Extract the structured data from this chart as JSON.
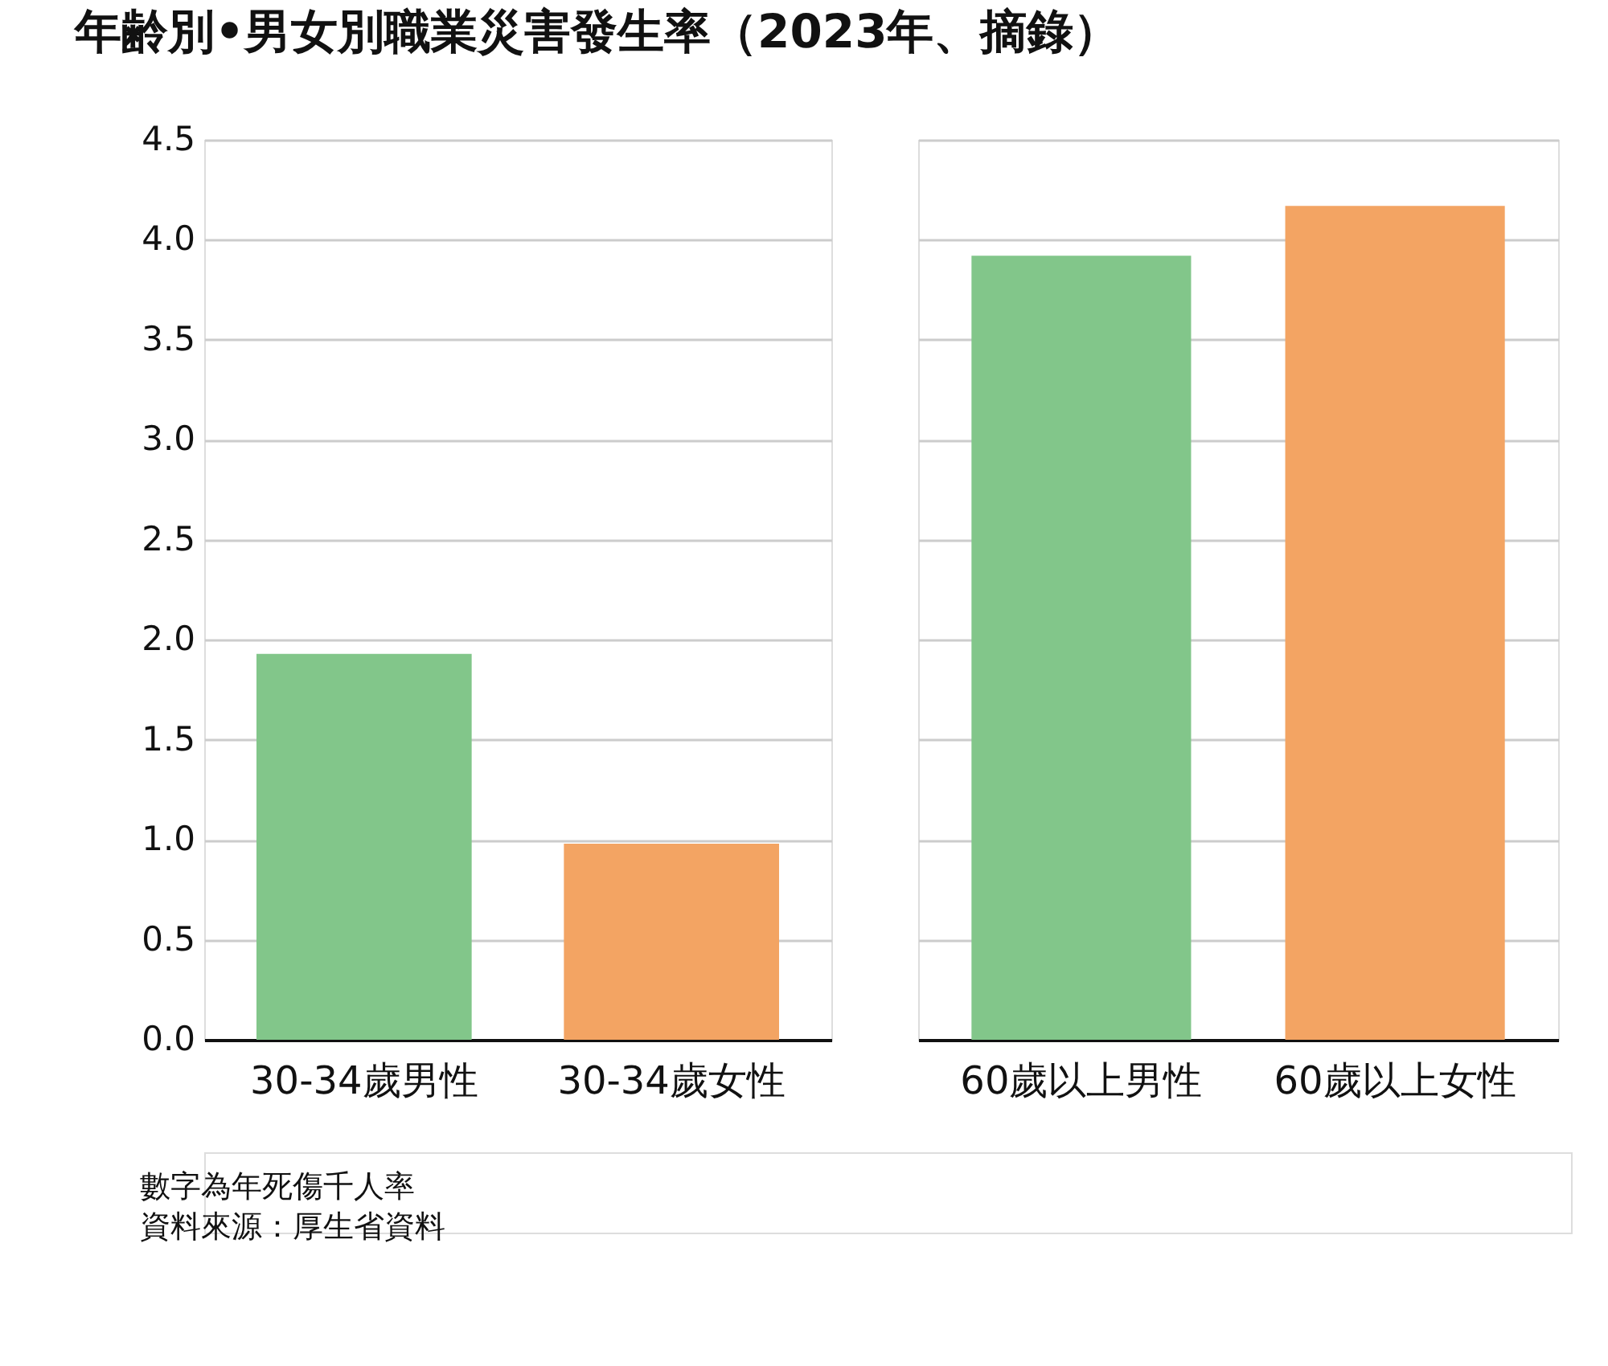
{
  "chart_data": [
    {
      "type": "bar",
      "title": "年齢別•男女別職業災害發生率（2023年、摘錄）",
      "categories": [
        "30-34歲男性",
        "30-34歲女性"
      ],
      "values": [
        1.93,
        0.98
      ],
      "colors": [
        "#82c68a",
        "#f3a463"
      ],
      "ylim": [
        0,
        4.5
      ],
      "yticks": [
        {
          "value": 0,
          "label": "0.0"
        },
        {
          "value": 0.5,
          "label": "0.5"
        },
        {
          "value": 1,
          "label": "1.0"
        },
        {
          "value": 1.5,
          "label": "1.5"
        },
        {
          "value": 2,
          "label": "2.0"
        },
        {
          "value": 2.5,
          "label": "2.5"
        },
        {
          "value": 3,
          "label": "3.0"
        },
        {
          "value": 3.5,
          "label": "3.5"
        },
        {
          "value": 4,
          "label": "4.0"
        },
        {
          "value": 4.5,
          "label": "4.5"
        }
      ],
      "grid": "y",
      "annotations": [
        "數字為年死傷千人率",
        "資料來源：厚生省資料"
      ]
    },
    {
      "type": "bar",
      "categories": [
        "60歲以上男性",
        "60歲以上女性"
      ],
      "values": [
        3.92,
        4.17
      ],
      "colors": [
        "#82c68a",
        "#f3a463"
      ],
      "ylim": [
        0,
        4.5
      ],
      "yticks": [
        0,
        0.5,
        1,
        1.5,
        2,
        2.5,
        3,
        3.5,
        4,
        4.5
      ],
      "grid": "y",
      "tick_labels": "x"
    }
  ]
}
